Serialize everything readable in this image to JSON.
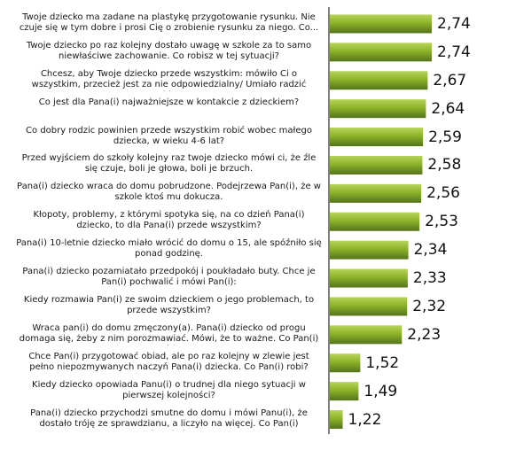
{
  "chart_data": {
    "type": "bar",
    "orientation": "horizontal",
    "categories": [
      "Twoje dziecko ma zadane na plastykę przygotowanie rysunku. Nie czuje się w tym dobre i prosi Cię o zrobienie rysunku za niego. Co...",
      "Twoje dziecko po raz kolejny dostało uwagę w szkole za to samo niewłaściwe zachowanie. Co robisz w tej sytuacji?",
      "Chcesz, aby Twoje dziecko przede wszystkim: mówiło Ci o wszystkim, przecież jest za nie odpowiedzialny/ Umiało radzić sobie...",
      "Co jest dla Pana(i) najważniejsze w kontakcie z dzieckiem?",
      "Co dobry rodzic powinien przede wszystkim robić wobec małego dziecka, w wieku 4-6 lat?",
      "Przed wyjściem do szkoły kolejny raz twoje dziecko mówi ci, że źle się czuje, boli je głowa, boli je brzuch.",
      "Pana(i) dziecko wraca do domu pobrudzone. Podejrzewa Pan(i), że w szkole ktoś mu dokucza.",
      "Kłopoty, problemy, z którymi spotyka się, na co dzień Pana(i) dziecko, to dla Pana(i) przede wszystkim?",
      "Pana(i) 10-letnie dziecko miało wrócić do domu o 15, ale spóźniło się ponad godzinę.",
      "Pana(i) dziecko pozamiatało przedpokój i poukładało buty. Chce je Pan(i) pochwalić i mówi Pan(i):",
      "Kiedy rozmawia Pan(i) ze swoim dzieckiem o jego problemach, to przede wszystkim?",
      "Wraca pan(i) do domu zmęczony(a). Pana(i) dziecko od progu domaga się, żeby z nim porozmawiać. Mówi, że to ważne. Co Pan(i) robi?",
      "Chce Pan(i) przygotować obiad, ale po raz kolejny w zlewie jest pełno niepozmywanych naczyń Pana(i) dziecka. Co Pan(i) robi?",
      "Kiedy dziecko opowiada Panu(i) o trudnej dla niego sytuacji w pierwszej kolejności?",
      "Pana(i) dziecko przychodzi smutne do domu i mówi Panu(i), że dostało tróję ze sprawdzianu, a liczyło na więcej. Co Pan(i) odpowiada?"
    ],
    "values": [
      2.74,
      2.74,
      2.67,
      2.64,
      2.59,
      2.58,
      2.56,
      2.53,
      2.34,
      2.33,
      2.32,
      2.23,
      1.52,
      1.49,
      1.22
    ],
    "value_labels": [
      "2,74",
      "2,74",
      "2,67",
      "2,64",
      "2,59",
      "2,58",
      "2,56",
      "2,53",
      "2,34",
      "2,33",
      "2,32",
      "2,23",
      "1,52",
      "1,49",
      "1,22"
    ],
    "title": "",
    "xlabel": "",
    "ylabel": "",
    "xlim": [
      1,
      2.8
    ],
    "grid": false,
    "legend": "none",
    "colors": {
      "bar_light": "#b7d45a",
      "bar_mid": "#8db32a",
      "bar_dark": "#55741a",
      "axis": "#000000",
      "label_text": "#1a1a1a"
    }
  }
}
